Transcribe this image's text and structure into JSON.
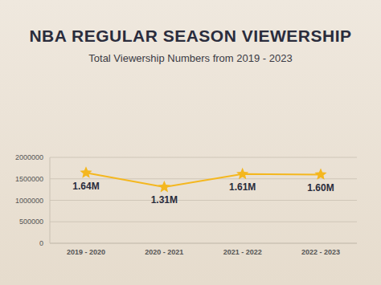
{
  "chart_data": {
    "type": "line",
    "title": "NBA REGULAR SEASON VIEWERSHIP",
    "subtitle": "Total Viewership Numbers from 2019 - 2023",
    "categories": [
      "2019 - 2020",
      "2020 - 2021",
      "2021 - 2022",
      "2022 - 2023"
    ],
    "values": [
      1640000,
      1310000,
      1610000,
      1600000
    ],
    "value_labels": [
      "1.64M",
      "1.31M",
      "1.61M",
      "1.60M"
    ],
    "data_labels": true,
    "color": "#f4b71f",
    "marker": "star",
    "ylim": [
      0,
      2000000
    ],
    "yticks": [
      0,
      500000,
      1000000,
      1500000,
      2000000
    ],
    "grid": true
  }
}
